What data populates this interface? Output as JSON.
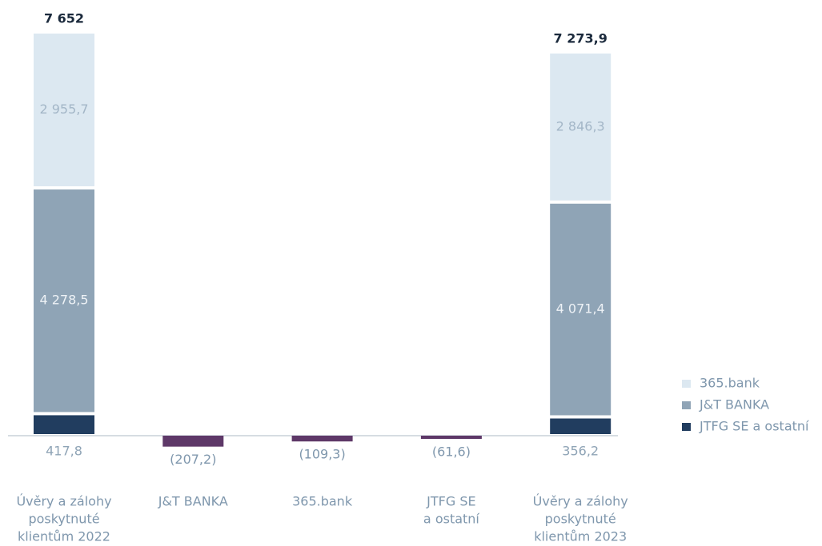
{
  "chart_data": {
    "type": "stacked_waterfall",
    "categories": [
      [
        "Úvěry a zálohy",
        "poskytnuté",
        "klientům 2022"
      ],
      [
        "J&T BANKA"
      ],
      [
        "365.bank"
      ],
      [
        "JTFG SE",
        "a ostatní"
      ],
      [
        "Úvěry a zálohy",
        "poskytnuté",
        "klientům 2023"
      ]
    ],
    "series": [
      {
        "name": "365.bank",
        "color": "#dce8f1",
        "label_color": "#a3b6c7",
        "values": [
          2955.7,
          null,
          null,
          null,
          2846.3
        ],
        "value_labels": [
          "2 955,7",
          null,
          null,
          null,
          "2 846,3"
        ]
      },
      {
        "name": "J&T BANKA",
        "color": "#8fa4b6",
        "label_color": "#eef2f6",
        "values": [
          4278.5,
          null,
          null,
          null,
          4071.4
        ],
        "value_labels": [
          "4 278,5",
          null,
          null,
          null,
          "4 071,4"
        ]
      },
      {
        "name": "JTFG SE a ostatní",
        "color": "#213d5f",
        "label_color": "#8fa4b6",
        "values": [
          417.8,
          null,
          null,
          null,
          356.2
        ],
        "value_labels": [
          "417,8",
          null,
          null,
          null,
          "356,2"
        ]
      }
    ],
    "changes": {
      "color": "#5e3868",
      "values": [
        null,
        -207.2,
        -109.3,
        -61.6,
        null
      ],
      "value_labels": [
        null,
        "(207,2)",
        "(109,3)",
        "(61,6)",
        null
      ]
    },
    "totals": {
      "values": [
        7652,
        null,
        null,
        null,
        7273.9
      ],
      "value_labels": [
        "7 652",
        null,
        null,
        null,
        "7 273,9"
      ]
    },
    "ylim": [
      -500,
      8000
    ]
  }
}
